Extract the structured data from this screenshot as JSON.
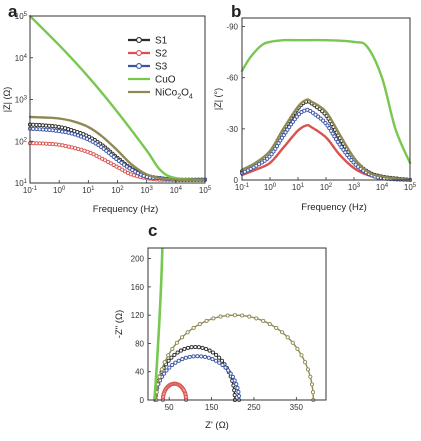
{
  "colors": {
    "S1": "#2b2b2b",
    "S2": "#d9524e",
    "S3": "#3a55a5",
    "CuO": "#78c850",
    "NiCo2O4": "#8f8a55",
    "axis": "#333333"
  },
  "chart_data": [
    {
      "id": "a",
      "panel_label": "a",
      "type": "line",
      "xscale": "log",
      "yscale": "log",
      "xlabel": "Frequency (Hz)",
      "ylabel": "|Z| (Ω)",
      "xlim": [
        0.1,
        100000
      ],
      "ylim": [
        10,
        100000
      ],
      "x_ticks": [
        {
          "v": 0.1,
          "b": "10",
          "e": "-1"
        },
        {
          "v": 1,
          "b": "10",
          "e": "0"
        },
        {
          "v": 10,
          "b": "10",
          "e": "1"
        },
        {
          "v": 100,
          "b": "10",
          "e": "2"
        },
        {
          "v": 1000,
          "b": "10",
          "e": "3"
        },
        {
          "v": 10000,
          "b": "10",
          "e": "4"
        },
        {
          "v": 100000,
          "b": "10",
          "e": "5"
        }
      ],
      "y_ticks": [
        {
          "v": 10,
          "b": "10",
          "e": "1"
        },
        {
          "v": 100,
          "b": "10",
          "e": "2"
        },
        {
          "v": 1000,
          "b": "10",
          "e": "3"
        },
        {
          "v": 10000,
          "b": "10",
          "e": "4"
        },
        {
          "v": 100000,
          "b": "10",
          "e": "5"
        }
      ],
      "legend": [
        {
          "key": "S1",
          "label": "S1",
          "sub": ""
        },
        {
          "key": "S2",
          "label": "S2",
          "sub": ""
        },
        {
          "key": "S3",
          "label": "S3",
          "sub": ""
        },
        {
          "key": "CuO",
          "label": "CuO",
          "sub": ""
        },
        {
          "key": "NiCo2O4",
          "label": "NiCo",
          "sub": "2",
          "label2": "O",
          "sub2": "4"
        }
      ],
      "legend_position": "top-right",
      "series": [
        {
          "name": "S1",
          "marker": true,
          "x": [
            0.1,
            0.3,
            1,
            3,
            10,
            30,
            100,
            300,
            1000,
            3000,
            10000,
            100000
          ],
          "y": [
            250,
            240,
            220,
            180,
            130,
            80,
            40,
            22,
            15,
            13,
            12,
            12
          ]
        },
        {
          "name": "S2",
          "marker": true,
          "x": [
            0.1,
            0.3,
            1,
            3,
            10,
            30,
            100,
            300,
            1000,
            3000,
            10000,
            100000
          ],
          "y": [
            90,
            88,
            82,
            70,
            55,
            38,
            24,
            16,
            13,
            12,
            12,
            12
          ]
        },
        {
          "name": "S3",
          "marker": true,
          "x": [
            0.1,
            0.3,
            1,
            3,
            10,
            30,
            100,
            300,
            1000,
            3000,
            10000,
            100000
          ],
          "y": [
            200,
            190,
            175,
            150,
            110,
            70,
            36,
            21,
            14,
            13,
            12,
            12
          ]
        },
        {
          "name": "CuO",
          "marker": false,
          "x": [
            0.1,
            1,
            10,
            100,
            1000,
            3000,
            10000,
            100000
          ],
          "y": [
            100000,
            20000,
            3500,
            500,
            60,
            20,
            13,
            12
          ]
        },
        {
          "name": "NiCo2O4",
          "marker": false,
          "x": [
            0.1,
            0.3,
            1,
            3,
            10,
            30,
            100,
            300,
            1000,
            3000,
            10000,
            100000
          ],
          "y": [
            380,
            370,
            350,
            300,
            220,
            130,
            60,
            28,
            16,
            13,
            12,
            12
          ]
        }
      ]
    },
    {
      "id": "b",
      "panel_label": "b",
      "type": "line",
      "xscale": "log",
      "yscale": "linear",
      "xlabel": "Frequency (Hz)",
      "ylabel": "|Z| (°)",
      "xlim": [
        0.1,
        100000
      ],
      "ylim": [
        0,
        -95
      ],
      "x_ticks": [
        {
          "v": 0.1,
          "b": "10",
          "e": "-1"
        },
        {
          "v": 1,
          "b": "10",
          "e": "0"
        },
        {
          "v": 10,
          "b": "10",
          "e": "1"
        },
        {
          "v": 100,
          "b": "10",
          "e": "2"
        },
        {
          "v": 1000,
          "b": "10",
          "e": "3"
        },
        {
          "v": 10000,
          "b": "10",
          "e": "4"
        },
        {
          "v": 100000,
          "b": "10",
          "e": "5"
        }
      ],
      "y_ticks": [
        {
          "v": 0,
          "t": "0"
        },
        {
          "v": -30,
          "t": "-30"
        },
        {
          "v": -60,
          "t": "-60"
        },
        {
          "v": -90,
          "t": "-90"
        }
      ],
      "series": [
        {
          "name": "S1",
          "marker": true,
          "x": [
            0.1,
            0.3,
            1,
            3,
            10,
            20,
            30,
            100,
            300,
            1000,
            3000,
            10000,
            100000
          ],
          "y": [
            -5,
            -9,
            -16,
            -29,
            -42,
            -46,
            -45,
            -38,
            -25,
            -12,
            -5,
            -2,
            0
          ]
        },
        {
          "name": "S2",
          "marker": false,
          "x": [
            0.1,
            0.3,
            1,
            3,
            10,
            20,
            30,
            100,
            300,
            1000,
            3000,
            10000,
            100000
          ],
          "y": [
            -3,
            -6,
            -10,
            -19,
            -29,
            -32,
            -31,
            -25,
            -15,
            -7,
            -3,
            -1,
            0
          ]
        },
        {
          "name": "S3",
          "marker": true,
          "x": [
            0.1,
            0.3,
            1,
            3,
            10,
            20,
            30,
            100,
            300,
            1000,
            3000,
            10000,
            100000
          ],
          "y": [
            -4,
            -8,
            -14,
            -26,
            -38,
            -41,
            -40,
            -33,
            -21,
            -10,
            -4,
            -1,
            0
          ]
        },
        {
          "name": "CuO",
          "marker": false,
          "x": [
            0.1,
            0.2,
            0.5,
            1,
            3,
            10,
            100,
            1000,
            3000,
            10000,
            30000,
            100000
          ],
          "y": [
            -64,
            -72,
            -79,
            -81,
            -82,
            -82,
            -82,
            -81,
            -78,
            -60,
            -30,
            -10
          ]
        },
        {
          "name": "NiCo2O4",
          "marker": false,
          "x": [
            0.1,
            0.3,
            1,
            3,
            10,
            20,
            30,
            100,
            300,
            1000,
            3000,
            10000,
            100000
          ],
          "y": [
            -6,
            -10,
            -17,
            -30,
            -43,
            -47,
            -46,
            -40,
            -27,
            -13,
            -5,
            -2,
            0
          ]
        }
      ]
    },
    {
      "id": "c",
      "panel_label": "c",
      "type": "scatter",
      "xlabel": "Z' (Ω)",
      "ylabel": "-Z\" (Ω)",
      "xlim": [
        0,
        420
      ],
      "ylim": [
        0,
        215
      ],
      "x_ticks": [
        {
          "v": 50,
          "t": "50"
        },
        {
          "v": 150,
          "t": "150"
        },
        {
          "v": 250,
          "t": "250"
        },
        {
          "v": 350,
          "t": "350"
        }
      ],
      "y_ticks": [
        {
          "v": 0,
          "t": "0"
        },
        {
          "v": 40,
          "t": "40"
        },
        {
          "v": 80,
          "t": "80"
        },
        {
          "v": 120,
          "t": "120"
        },
        {
          "v": 160,
          "t": "160"
        },
        {
          "v": 200,
          "t": "200"
        }
      ],
      "series": [
        {
          "name": "S1",
          "style": "arc",
          "x0": 18,
          "x1": 205,
          "peak": 75
        },
        {
          "name": "S2",
          "style": "arc",
          "x0": 35,
          "x1": 90,
          "peak": 23
        },
        {
          "name": "S3",
          "style": "arc",
          "x0": 18,
          "x1": 215,
          "peak": 62
        },
        {
          "name": "NiCo2O4",
          "style": "arc",
          "x0": 20,
          "x1": 390,
          "peak": 120
        },
        {
          "name": "CuO",
          "style": "line",
          "x": [
            15,
            22,
            30,
            34
          ],
          "y": [
            0,
            60,
            150,
            215
          ]
        }
      ]
    }
  ]
}
